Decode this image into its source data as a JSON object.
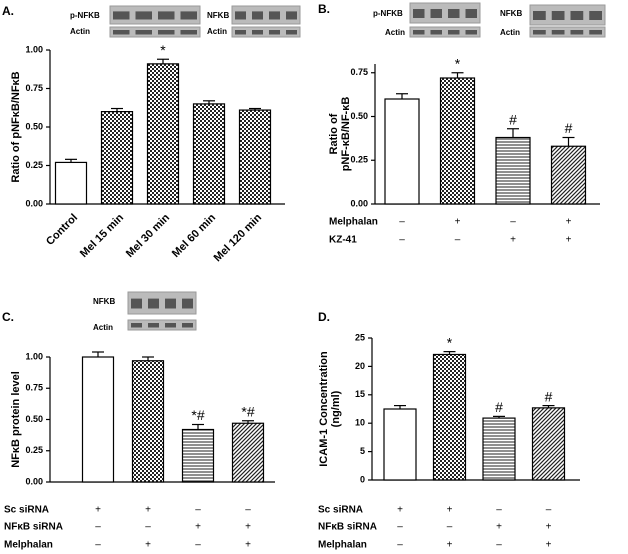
{
  "chart_data": [
    {
      "type": "bar",
      "panel_label": "A.",
      "y_label": [
        "Ratio of pNFκB/NFκB"
      ],
      "blot_labels": [
        "p-NFKB",
        "NFKB",
        "Actin",
        "Actin"
      ],
      "categories": [
        "Control",
        "Mel 15 min",
        "Mel 30 min",
        "Mel 60 min",
        "Mel 120 min"
      ],
      "values": [
        0.27,
        0.6,
        0.91,
        0.65,
        0.61
      ],
      "errors": [
        0.02,
        0.02,
        0.03,
        0.02,
        0.01
      ],
      "annotations": [
        null,
        null,
        "*",
        null,
        null
      ],
      "fills": [
        "white",
        "checker",
        "checker",
        "checker",
        "checker"
      ],
      "ylim": [
        0,
        1.0
      ],
      "yticks": [
        {
          "value": 0,
          "label": "0.00"
        },
        {
          "value": 0.25,
          "label": "0.25"
        },
        {
          "value": 0.5,
          "label": "0.50"
        },
        {
          "value": 0.75,
          "label": "0.75"
        },
        {
          "value": 1.0,
          "label": "1.00"
        }
      ]
    },
    {
      "type": "bar",
      "panel_label": "B.",
      "y_label": [
        "Ratio of",
        "pNF-κB/NF-κB"
      ],
      "blot_labels": [
        "p-NFKB",
        "NFKB",
        "Actin",
        "Actin"
      ],
      "conditions": [
        {
          "name": "Melphalan",
          "signs": [
            "–",
            "+",
            "–",
            "+"
          ]
        },
        {
          "name": "KZ-41",
          "signs": [
            "–",
            "–",
            "+",
            "+"
          ]
        }
      ],
      "values": [
        0.6,
        0.72,
        0.38,
        0.33
      ],
      "errors": [
        0.03,
        0.03,
        0.05,
        0.05
      ],
      "annotations": [
        null,
        "*",
        "#",
        "#"
      ],
      "fills": [
        "white",
        "checker",
        "hlines",
        "diag"
      ],
      "ylim": [
        0,
        0.8
      ],
      "yticks": [
        {
          "value": 0,
          "label": "0.00"
        },
        {
          "value": 0.25,
          "label": "0.25"
        },
        {
          "value": 0.5,
          "label": "0.50"
        },
        {
          "value": 0.75,
          "label": "0.75"
        }
      ]
    },
    {
      "type": "bar",
      "panel_label": "C.",
      "y_label": [
        "NFκB protein level"
      ],
      "blot_labels": [
        "NFKB",
        "Actin"
      ],
      "conditions": [
        {
          "name": "Sc siRNA",
          "signs": [
            "+",
            "+",
            "–",
            "–"
          ]
        },
        {
          "name": "NFκB siRNA",
          "signs": [
            "–",
            "–",
            "+",
            "+"
          ]
        },
        {
          "name": "Melphalan",
          "signs": [
            "–",
            "+",
            "–",
            "+"
          ]
        }
      ],
      "values": [
        1.0,
        0.97,
        0.42,
        0.47
      ],
      "errors": [
        0.04,
        0.03,
        0.04,
        0.02
      ],
      "annotations": [
        null,
        null,
        "*#",
        "*#"
      ],
      "fills": [
        "white",
        "checker",
        "hlines",
        "diag"
      ],
      "ylim": [
        0,
        1.0
      ],
      "yticks": [
        {
          "value": 0,
          "label": "0.00"
        },
        {
          "value": 0.25,
          "label": "0.25"
        },
        {
          "value": 0.5,
          "label": "0.50"
        },
        {
          "value": 0.75,
          "label": "0.75"
        },
        {
          "value": 1.0,
          "label": "1.00"
        }
      ]
    },
    {
      "type": "bar",
      "panel_label": "D.",
      "y_label": [
        "ICAM-1 Concentration",
        "(ng/ml)"
      ],
      "conditions": [
        {
          "name": "Sc siRNA",
          "signs": [
            "+",
            "+",
            "–",
            "–"
          ]
        },
        {
          "name": "NFκB siRNA",
          "signs": [
            "–",
            "–",
            "+",
            "+"
          ]
        },
        {
          "name": "Melphalan",
          "signs": [
            "–",
            "+",
            "–",
            "+"
          ]
        }
      ],
      "values": [
        12.5,
        22.1,
        10.9,
        12.7
      ],
      "errors": [
        0.6,
        0.5,
        0.3,
        0.4
      ],
      "annotations": [
        null,
        "*",
        "#",
        "#"
      ],
      "fills": [
        "white",
        "checker",
        "hlines",
        "diag"
      ],
      "ylim": [
        0,
        25
      ],
      "yticks": [
        0,
        5,
        10,
        15,
        20,
        25
      ]
    }
  ]
}
